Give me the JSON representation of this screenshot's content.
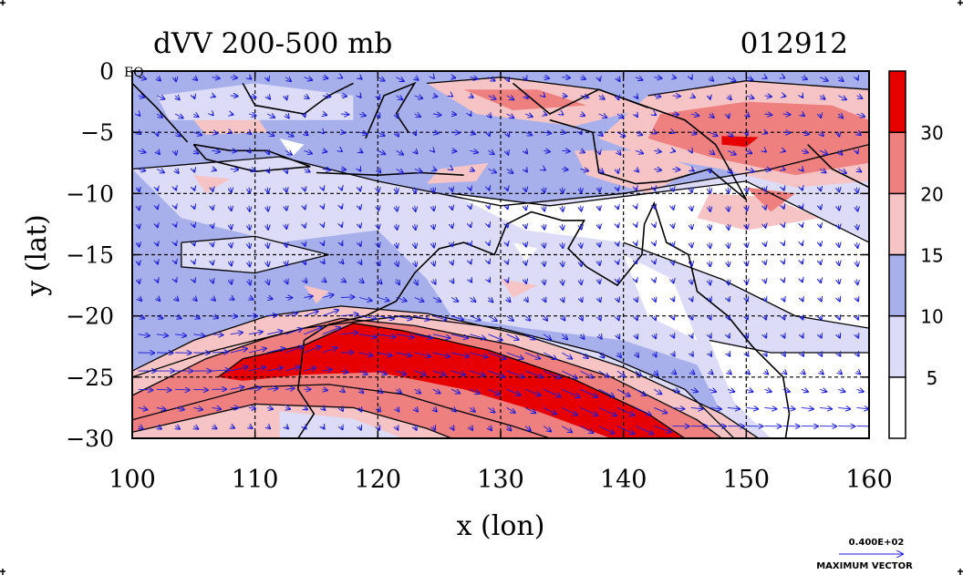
{
  "chart_data": {
    "type": "heatmap",
    "title": "dVV 200-500 mb",
    "timestamp": "012912",
    "xlabel": "x (lon)",
    "ylabel": "y (lat)",
    "xlim": [
      100,
      160
    ],
    "ylim": [
      -30,
      0
    ],
    "xticks": [
      "100",
      "110",
      "120",
      "130",
      "140",
      "150",
      "160"
    ],
    "yticks": [
      "0",
      "-5",
      "-10",
      "-15",
      "-20",
      "-25",
      "-30"
    ],
    "grid": true,
    "colorbar": {
      "levels": [
        0,
        5,
        10,
        15,
        20,
        30,
        40
      ],
      "labels": [
        "5",
        "10",
        "15",
        "20",
        "30"
      ],
      "colors": [
        "#ffffff",
        "#dcdcf8",
        "#a8b0ec",
        "#f6c4c4",
        "#ee8080",
        "#e60000"
      ]
    },
    "jet_core": [
      {
        "lon": 107,
        "lat": -24.2
      },
      {
        "lon": 112,
        "lat": -22.8
      },
      {
        "lon": 117,
        "lat": -20.6
      },
      {
        "lon": 122,
        "lat": -21.5
      },
      {
        "lon": 128,
        "lat": -23.0
      },
      {
        "lon": 133,
        "lat": -25.0
      },
      {
        "lon": 138,
        "lat": -27.5
      },
      {
        "lon": 143,
        "lat": -30.0
      }
    ],
    "vector_reference": {
      "value": "0.400E+02",
      "caption": "MAXIMUM VECTOR"
    }
  },
  "equator_label": "EQ",
  "colors": {
    "vector": "#1a1ad8",
    "contour": "#000000",
    "coast": "#000000"
  }
}
